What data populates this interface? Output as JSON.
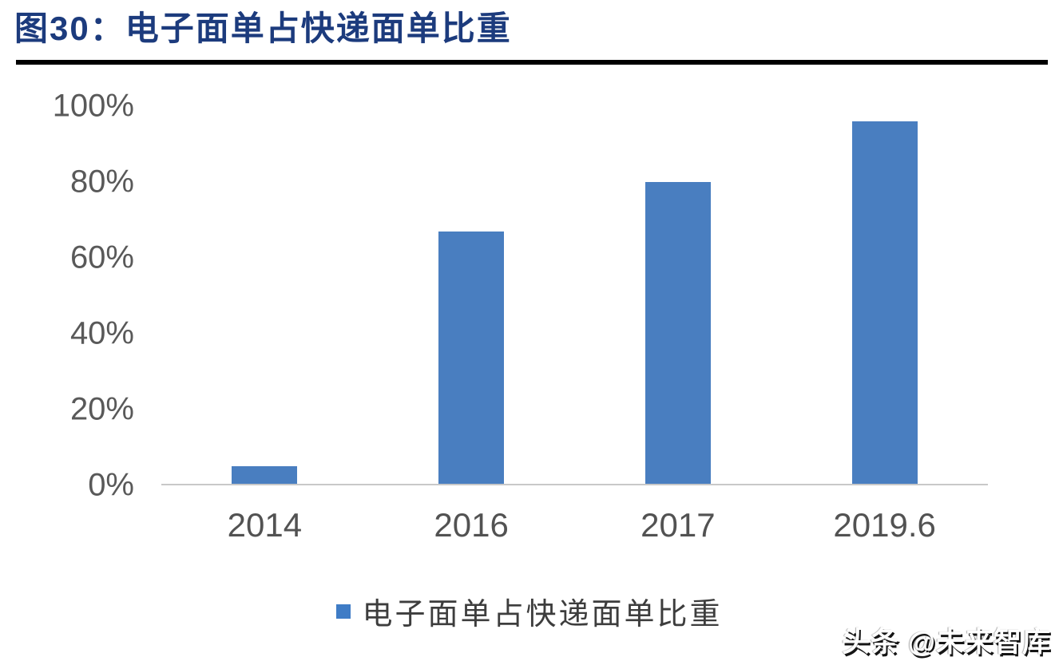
{
  "title": "图30：电子面单占快递面单比重",
  "chart_data": {
    "type": "bar",
    "title": "图30：电子面单占快递面单比重",
    "categories": [
      "2014",
      "2016",
      "2017",
      "2019.6"
    ],
    "series": [
      {
        "name": "电子面单占快递面单比重",
        "values": [
          5,
          67,
          80,
          96
        ]
      }
    ],
    "unit": "%",
    "xlabel": "",
    "ylabel": "",
    "ylim": [
      0,
      100
    ],
    "y_ticks": [
      {
        "value": 100,
        "label": "100%"
      },
      {
        "value": 80,
        "label": "80%"
      },
      {
        "value": 60,
        "label": "60%"
      },
      {
        "value": 40,
        "label": "40%"
      },
      {
        "value": 20,
        "label": "20%"
      },
      {
        "value": 0,
        "label": "0%"
      }
    ],
    "grid": false,
    "legend_position": "bottom",
    "bar_color": "#497ec0"
  },
  "legend": {
    "swatch_color": "#3f7cc6",
    "label": "电子面单占快递面单比重"
  },
  "watermark": "头条 @未来智库",
  "colors": {
    "title_text": "#1c3b7d",
    "divider": "#000000",
    "axis_line": "#c8c8c8",
    "tick_text": "#595959",
    "background": "#ffffff"
  }
}
